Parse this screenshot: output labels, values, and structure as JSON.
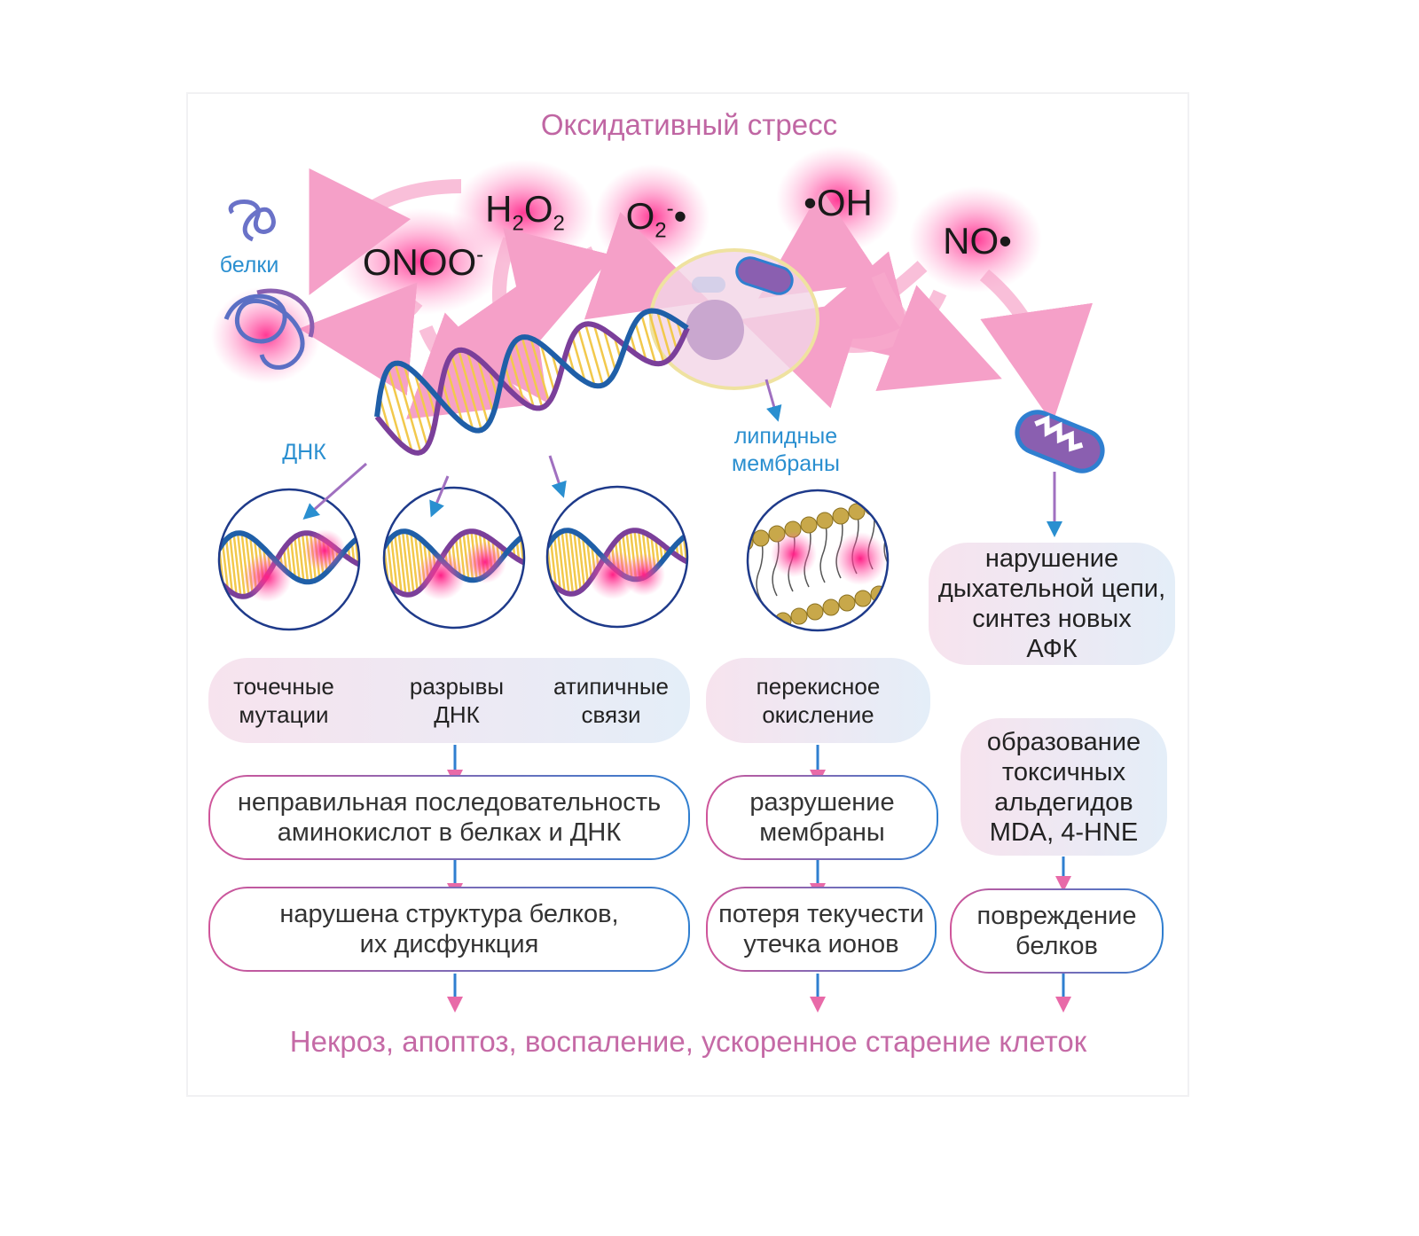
{
  "title": "Оксидативный стресс",
  "species": {
    "h2o2": {
      "main": "H",
      "sub1": "2",
      "mid": "O",
      "sub2": "2"
    },
    "o2": {
      "main": "O",
      "sub": "2",
      "sup": "-",
      "dot": "•"
    },
    "oh": "•OH",
    "no": "NO•",
    "onoo": {
      "main": "ONOO",
      "sup": "-"
    }
  },
  "labels": {
    "proteins": "белки",
    "dna": "ДНК",
    "lipid_membranes_1": "липидные",
    "lipid_membranes_2": "мембраны"
  },
  "dna_effects": {
    "point_mutations": [
      "точечные",
      "мутации"
    ],
    "dna_breaks": [
      "разрывы",
      "ДНК"
    ],
    "atypical_bonds": [
      "атипичные",
      "связи"
    ]
  },
  "lipid_effect": [
    "перекисное",
    "окисление"
  ],
  "mito_effect": [
    "нарушение",
    "дыхательной цепи,",
    "синтез новых",
    "АФК"
  ],
  "aldehydes": [
    "образование",
    "токсичных",
    "альдегидов",
    "MDA, 4-HNE"
  ],
  "outcomes": {
    "wrong_sequence": [
      "неправильная последовательность",
      "аминокислот в белках и ДНК"
    ],
    "membrane_destruction": [
      "разрушение",
      "мембраны"
    ],
    "protein_structure": [
      "нарушена структура белков,",
      "их дисфункция"
    ],
    "fluidity_loss": [
      "потеря текучести",
      "утечка ионов"
    ],
    "protein_damage": [
      "повреждение",
      "белков"
    ]
  },
  "footer": "Некроз, апоптоз, воспаление, ускоренное старение клеток",
  "colors": {
    "pink": "#e8559c",
    "blue": "#2a8fd0",
    "navy": "#1e3a8a",
    "title": "#c066a3",
    "dna_yellow": "#f2c94c"
  }
}
